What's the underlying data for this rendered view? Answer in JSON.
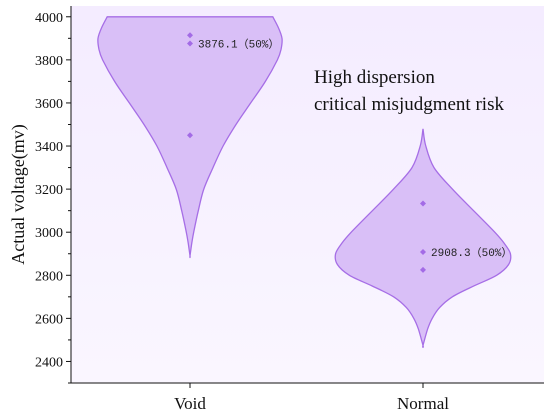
{
  "chart_data": {
    "type": "violin",
    "ylabel": "Actual voltage(mv)",
    "xlabel": "",
    "ylim": [
      2300,
      4050
    ],
    "yticks": [
      2400,
      2600,
      2800,
      3000,
      3200,
      3400,
      3600,
      3800,
      4000
    ],
    "categories": [
      "Void",
      "Normal"
    ],
    "colors": {
      "fill": "#d9bff7",
      "stroke": "#a66ee6",
      "point": "#a36be6",
      "background_top": "#f4ecff",
      "background_bottom": "#faf6ff"
    },
    "series": [
      {
        "category": "Void",
        "extent": [
          2890,
          4000
        ],
        "profile": [
          [
            4000,
            0.9
          ],
          [
            3950,
            0.96
          ],
          [
            3900,
            1.0
          ],
          [
            3850,
            0.99
          ],
          [
            3800,
            0.95
          ],
          [
            3700,
            0.82
          ],
          [
            3600,
            0.66
          ],
          [
            3500,
            0.5
          ],
          [
            3400,
            0.36
          ],
          [
            3300,
            0.25
          ],
          [
            3200,
            0.15
          ],
          [
            3100,
            0.09
          ],
          [
            3000,
            0.04
          ],
          [
            2950,
            0.02
          ],
          [
            2890,
            0.0
          ]
        ],
        "points": [
          3914,
          3876.1,
          3450
        ],
        "median": 3876.1,
        "median_label": "3876.1（50%）"
      },
      {
        "category": "Normal",
        "extent": [
          2475,
          3480
        ],
        "profile": [
          [
            3480,
            0.0
          ],
          [
            3400,
            0.03
          ],
          [
            3300,
            0.12
          ],
          [
            3200,
            0.32
          ],
          [
            3100,
            0.55
          ],
          [
            3000,
            0.78
          ],
          [
            2950,
            0.88
          ],
          [
            2900,
            0.95
          ],
          [
            2850,
            0.93
          ],
          [
            2800,
            0.8
          ],
          [
            2750,
            0.55
          ],
          [
            2700,
            0.32
          ],
          [
            2650,
            0.18
          ],
          [
            2600,
            0.1
          ],
          [
            2550,
            0.05
          ],
          [
            2475,
            0.0
          ]
        ],
        "points": [
          3133,
          2908.3,
          2825
        ],
        "median": 2908.3,
        "median_label": "2908.3（50%）"
      }
    ],
    "annotation": [
      "High dispersion",
      "critical misjudgment risk"
    ]
  }
}
